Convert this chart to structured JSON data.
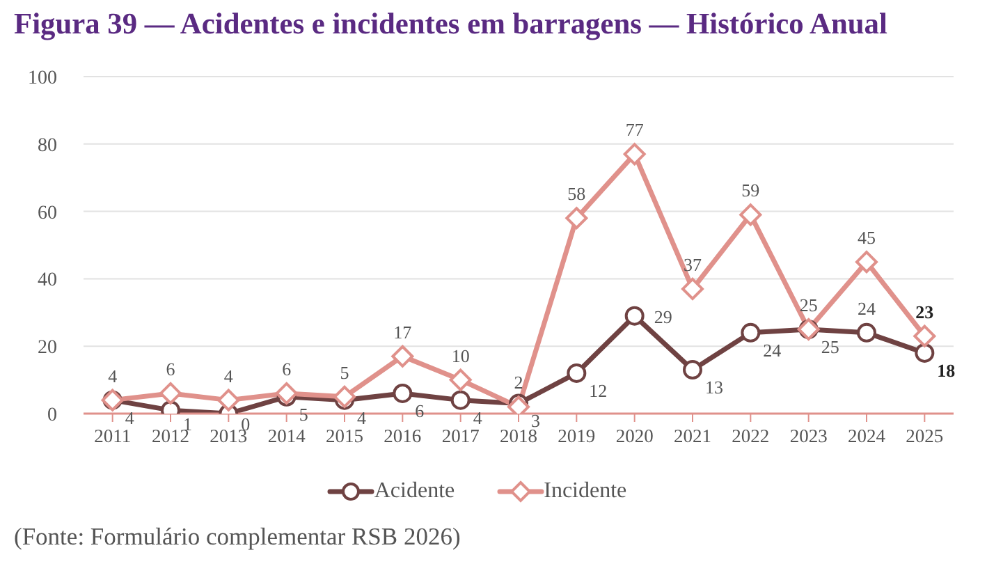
{
  "chart_data": {
    "type": "line",
    "title": "Figura 39 — Acidentes e incidentes em barragens — Histórico Anual",
    "categories": [
      "2011",
      "2012",
      "2013",
      "2014",
      "2015",
      "2016",
      "2017",
      "2018",
      "2019",
      "2020",
      "2021",
      "2022",
      "2023",
      "2024",
      "2025"
    ],
    "series": [
      {
        "name": "Acidente",
        "color": "#6f4242",
        "marker": "circle",
        "values": [
          4,
          1,
          0,
          5,
          4,
          6,
          4,
          3,
          12,
          29,
          13,
          24,
          25,
          24,
          18
        ]
      },
      {
        "name": "Incidente",
        "color": "#e0918b",
        "marker": "diamond",
        "values": [
          4,
          6,
          4,
          6,
          5,
          17,
          10,
          2,
          58,
          77,
          37,
          59,
          25,
          45,
          23
        ]
      }
    ],
    "ylim": [
      0,
      100
    ],
    "yticks": [
      0,
      20,
      40,
      60,
      80,
      100
    ],
    "grid": "y",
    "legend": "bottom",
    "data_labels": true,
    "annotations": [
      "(Fonte: Formulário complementar RSB 2026)"
    ]
  }
}
